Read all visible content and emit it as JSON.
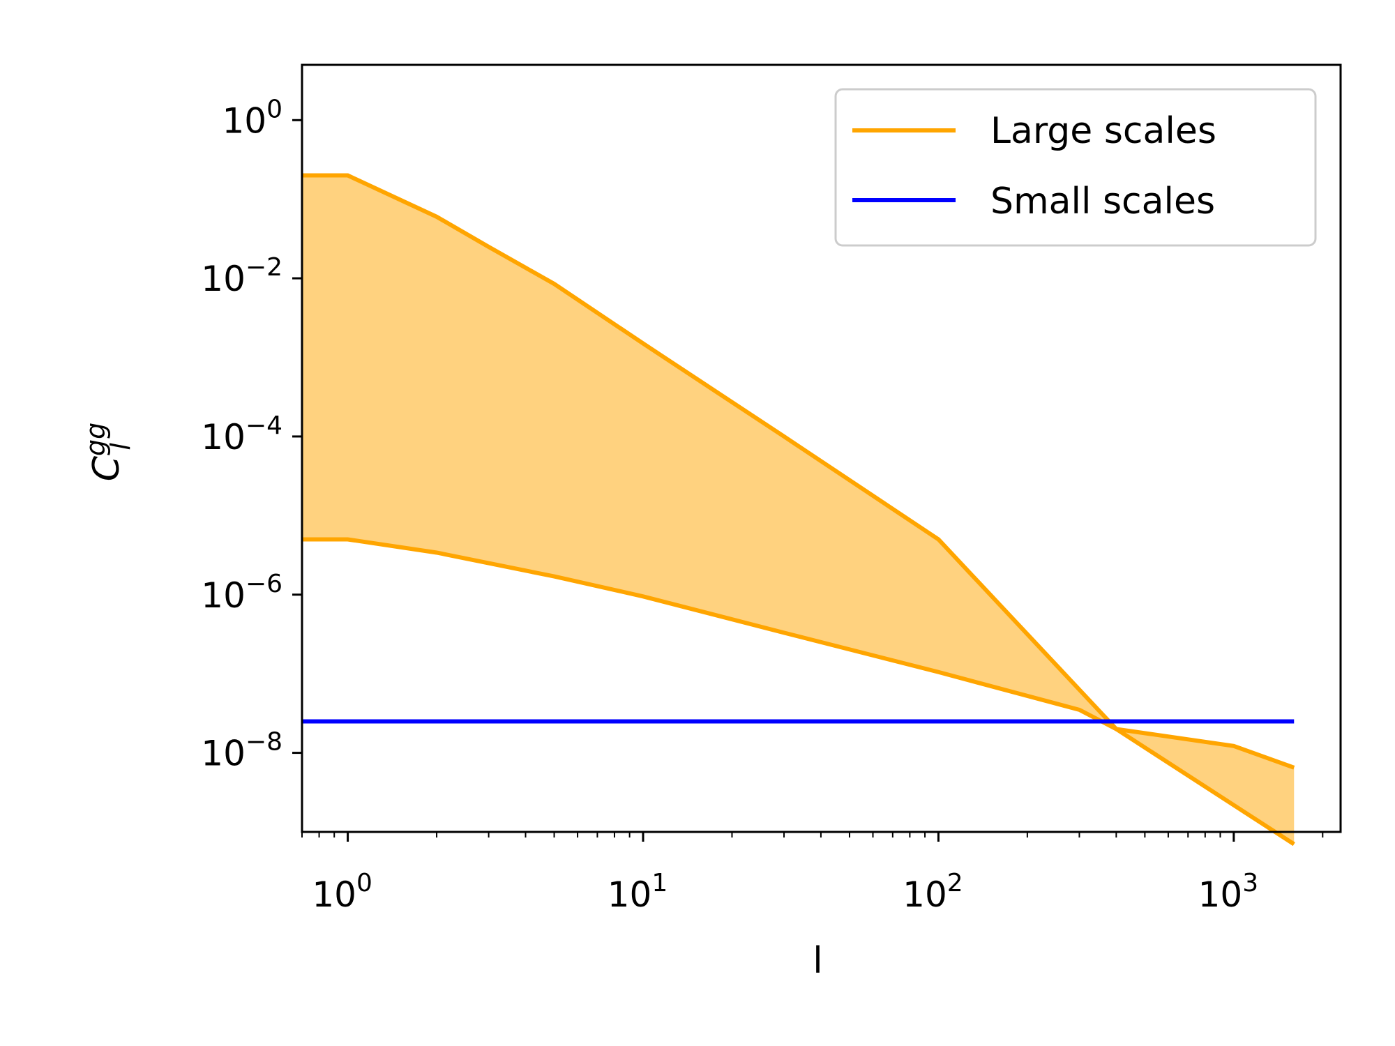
{
  "chart_data": {
    "type": "line",
    "title": "",
    "xlabel": "l",
    "ylabel": {
      "symbol": "C",
      "superscript": "gg",
      "subscript": "l"
    },
    "x_scale": "log",
    "y_scale": "log",
    "xlim": [
      0.7,
      2300
    ],
    "ylim": [
      1e-09,
      5
    ],
    "x_ticks": [
      {
        "base": "10",
        "exp": "0",
        "value": 1
      },
      {
        "base": "10",
        "exp": "1",
        "value": 10
      },
      {
        "base": "10",
        "exp": "2",
        "value": 100
      },
      {
        "base": "10",
        "exp": "3",
        "value": 1000
      }
    ],
    "y_ticks": [
      {
        "base": "10",
        "exp": "0",
        "value": 1
      },
      {
        "base": "10",
        "exp": "−2",
        "value": 0.01
      },
      {
        "base": "10",
        "exp": "−4",
        "value": 0.0001
      },
      {
        "base": "10",
        "exp": "−6",
        "value": 1e-06
      },
      {
        "base": "10",
        "exp": "−8",
        "value": 1e-08
      }
    ],
    "legend_position": "top-right",
    "grid": false,
    "series": [
      {
        "name": "Large scales",
        "color": "#ffa500",
        "fill_color": "#ffa500",
        "fill_opacity": 0.5,
        "upper": {
          "x": [
            0.7,
            1,
            2,
            3,
            5,
            10,
            30,
            100,
            400,
            1600
          ],
          "y": [
            0.2,
            0.2,
            0.06,
            0.025,
            0.0085,
            0.0015,
            0.0001,
            5e-06,
            2e-08,
            7e-10
          ]
        },
        "lower": {
          "x": [
            0.7,
            1,
            2,
            5,
            10,
            30,
            100,
            300,
            400,
            1000,
            1600
          ],
          "y": [
            5e-06,
            5e-06,
            3.4e-06,
            1.7e-06,
            9.5e-07,
            3.3e-07,
            1.05e-07,
            3.5e-08,
            2e-08,
            1.22e-08,
            6.5e-09
          ]
        }
      },
      {
        "name": "Small scales",
        "color": "#0000ff",
        "x": [
          0.7,
          1600
        ],
        "y": [
          2.5e-08,
          2.5e-08
        ]
      }
    ]
  }
}
